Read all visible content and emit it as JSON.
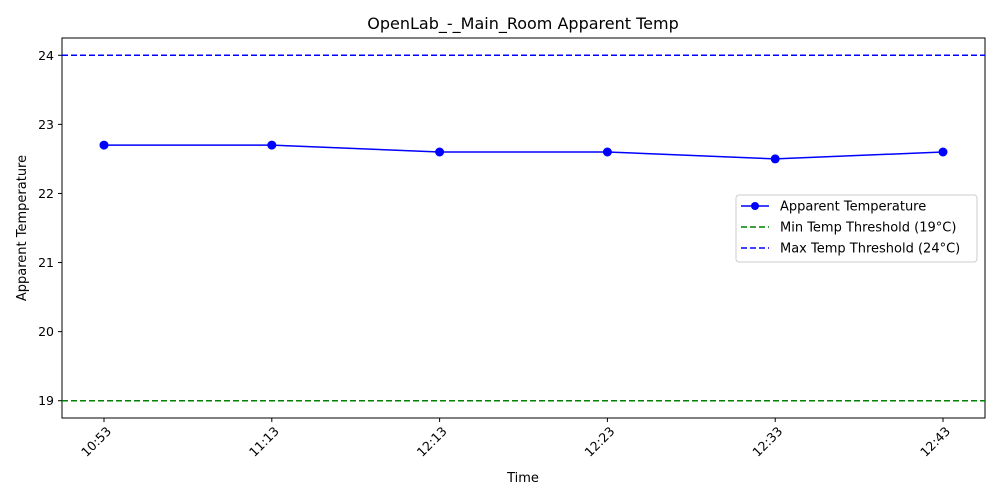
{
  "chart_data": {
    "type": "line",
    "title": "OpenLab_-_Main_Room Apparent Temp",
    "xlabel": "Time",
    "ylabel": "Apparent Temperature",
    "categories": [
      "10:53",
      "11:13",
      "12:13",
      "12:23",
      "12:33",
      "12:43"
    ],
    "yticks": [
      19,
      20,
      21,
      22,
      23,
      24
    ],
    "ylim": [
      18.75,
      24.25
    ],
    "grid": false,
    "legend_position": "center-right",
    "series": [
      {
        "name": "Apparent Temperature",
        "values": [
          22.7,
          22.7,
          22.6,
          22.6,
          22.5,
          22.6
        ],
        "color": "#0000ff",
        "style": "solid",
        "marker": "circle"
      }
    ],
    "thresholds": [
      {
        "name": "Min Temp Threshold (19°C)",
        "value": 19,
        "color": "#008000",
        "style": "dashed"
      },
      {
        "name": "Max Temp Threshold (24°C)",
        "value": 24,
        "color": "#0000ff",
        "style": "dashed"
      }
    ]
  }
}
